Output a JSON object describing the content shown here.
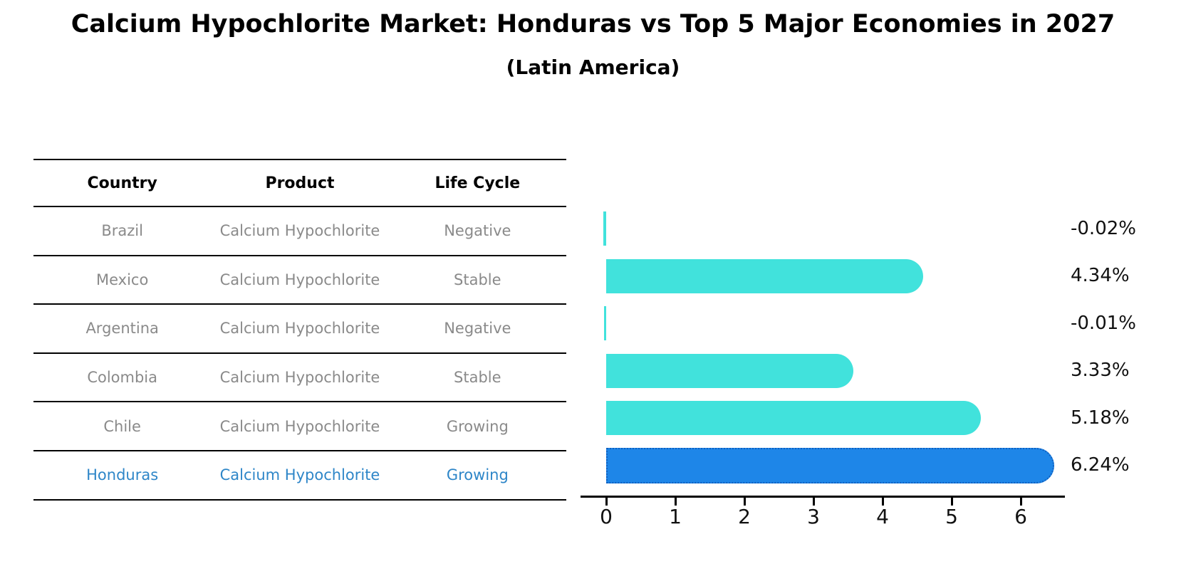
{
  "title": "Calcium Hypochlorite Market: Honduras vs Top 5 Major Economies in 2027",
  "subtitle": "(Latin America)",
  "table": {
    "headers": [
      "Country",
      "Product",
      "Life Cycle"
    ],
    "rows": [
      {
        "country": "Brazil",
        "product": "Calcium Hypochlorite",
        "life_cycle": "Negative"
      },
      {
        "country": "Mexico",
        "product": "Calcium Hypochlorite",
        "life_cycle": "Stable"
      },
      {
        "country": "Argentina",
        "product": "Calcium Hypochlorite",
        "life_cycle": "Negative"
      },
      {
        "country": "Colombia",
        "product": "Calcium Hypochlorite",
        "life_cycle": "Stable"
      },
      {
        "country": "Chile",
        "product": "Calcium Hypochlorite",
        "life_cycle": "Growing"
      },
      {
        "country": "Honduras",
        "product": "Calcium Hypochlorite",
        "life_cycle": "Growing"
      }
    ],
    "highlighted_row": "Honduras",
    "highlight_text_color": "#2e86c8",
    "row_text_color": "#8a8a8a"
  },
  "chart_data": {
    "type": "bar",
    "orientation": "horizontal",
    "title": "Calcium Hypochlorite Market: Honduras vs Top 5 Major Economies in 2027",
    "subtitle": "(Latin America)",
    "categories": [
      "Brazil",
      "Mexico",
      "Argentina",
      "Colombia",
      "Chile",
      "Honduras"
    ],
    "values": [
      -0.02,
      4.34,
      -0.01,
      3.33,
      5.18,
      6.24
    ],
    "value_labels": [
      "-0.02%",
      "4.34%",
      "-0.01%",
      "3.33%",
      "5.18%",
      "6.24%"
    ],
    "xticks": [
      "0",
      "1",
      "2",
      "3",
      "4",
      "5",
      "6"
    ],
    "xlim": [
      0,
      6.6
    ],
    "xlabel": "",
    "ylabel": "",
    "grid": false,
    "legend": "none",
    "bar_color": "#41e2dc",
    "highlight_index": 5,
    "highlight_bar_color": "#1e86e8",
    "highlight_border_color": "#1060c0",
    "axis_color": "#000000"
  }
}
